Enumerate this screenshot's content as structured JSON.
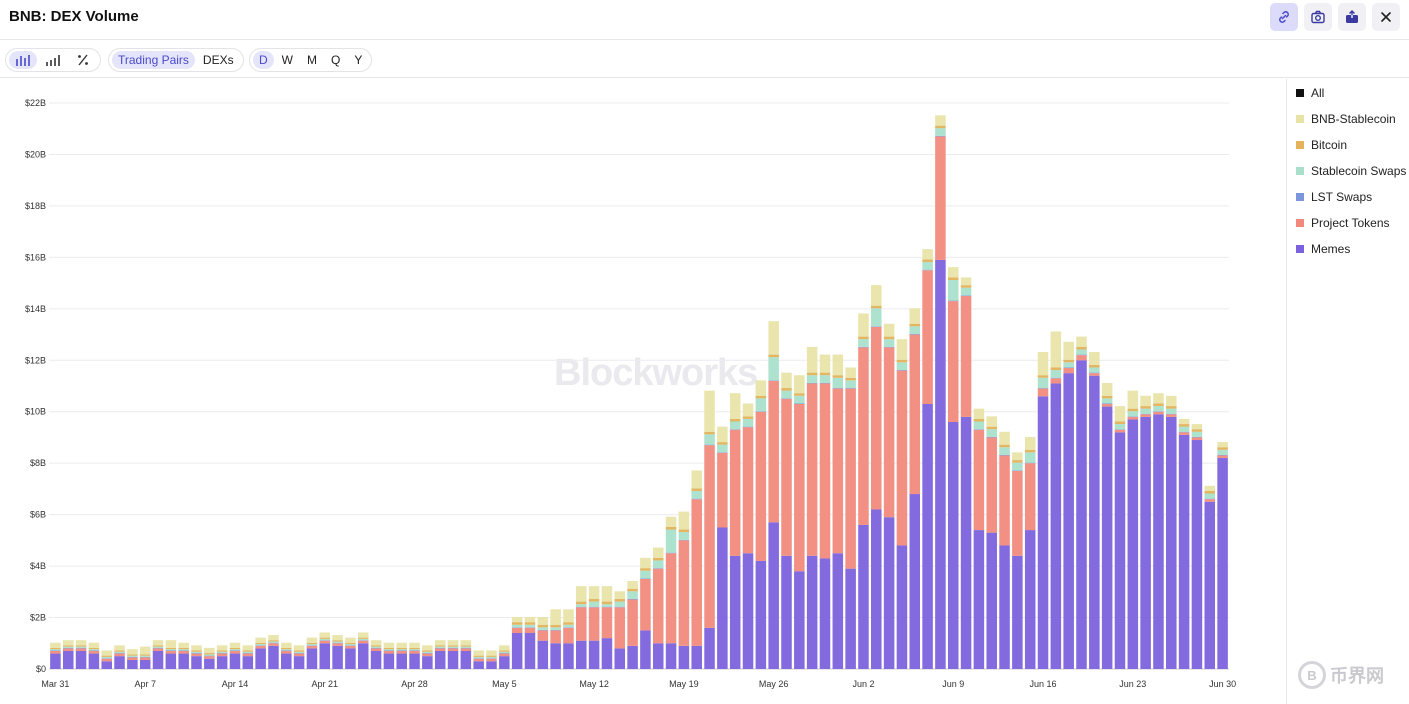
{
  "header": {
    "title": "BNB: DEX Volume"
  },
  "toolbar": {
    "chart_types": [
      "bar-chart-icon",
      "histogram-icon",
      "percent-icon"
    ],
    "view_tabs": [
      "Trading Pairs",
      "DEXs"
    ],
    "interval_tabs": [
      "D",
      "W",
      "M",
      "Q",
      "Y"
    ]
  },
  "watermark": "Blockworks",
  "corner_logo": {
    "text": "币界网",
    "coin": "B"
  },
  "legend": [
    {
      "label": "All",
      "color": "#111111"
    },
    {
      "label": "BNB-Stablecoin",
      "color": "#e8e4a8"
    },
    {
      "label": "Bitcoin",
      "color": "#e3b25a"
    },
    {
      "label": "Stablecoin Swaps",
      "color": "#a8e0cb"
    },
    {
      "label": "LST Swaps",
      "color": "#7b96dc"
    },
    {
      "label": "Project Tokens",
      "color": "#f18a7c"
    },
    {
      "label": "Memes",
      "color": "#7c62dd"
    }
  ],
  "chart_data": {
    "type": "bar",
    "stacked": true,
    "ylim": [
      0,
      22
    ],
    "y_ticks": [
      "$0",
      "$2B",
      "$4B",
      "$6B",
      "$8B",
      "$10B",
      "$12B",
      "$14B",
      "$16B",
      "$18B",
      "$20B",
      "$22B"
    ],
    "x_tick_labels": [
      {
        "index": 0,
        "label": "Mar 31"
      },
      {
        "index": 7,
        "label": "Apr 7"
      },
      {
        "index": 14,
        "label": "Apr 14"
      },
      {
        "index": 21,
        "label": "Apr 21"
      },
      {
        "index": 28,
        "label": "Apr 28"
      },
      {
        "index": 35,
        "label": "May 5"
      },
      {
        "index": 42,
        "label": "May 12"
      },
      {
        "index": 49,
        "label": "May 19"
      },
      {
        "index": 56,
        "label": "May 26"
      },
      {
        "index": 63,
        "label": "Jun 2"
      },
      {
        "index": 70,
        "label": "Jun 9"
      },
      {
        "index": 77,
        "label": "Jun 16"
      },
      {
        "index": 84,
        "label": "Jun 23"
      },
      {
        "index": 91,
        "label": "Jun 30"
      }
    ],
    "unit": "USD billions",
    "series": [
      {
        "name": "Memes",
        "color": "#7c62dd",
        "values": [
          0.6,
          0.7,
          0.7,
          0.6,
          0.3,
          0.5,
          0.35,
          0.35,
          0.7,
          0.6,
          0.6,
          0.5,
          0.4,
          0.5,
          0.6,
          0.5,
          0.8,
          0.9,
          0.6,
          0.5,
          0.8,
          1.0,
          0.9,
          0.8,
          1.0,
          0.7,
          0.6,
          0.6,
          0.6,
          0.5,
          0.7,
          0.7,
          0.7,
          0.3,
          0.3,
          0.5,
          1.4,
          1.4,
          1.1,
          1.0,
          1.0,
          1.1,
          1.1,
          1.2,
          0.8,
          0.9,
          1.5,
          1.0,
          1.0,
          0.9,
          0.9,
          1.6,
          5.5,
          4.4,
          4.5,
          4.2,
          5.7,
          4.4,
          3.8,
          4.4,
          4.3,
          4.5,
          3.9,
          5.6,
          6.2,
          5.9,
          4.8,
          6.8,
          10.3,
          15.9,
          9.6,
          9.8,
          5.4,
          5.3,
          4.8,
          4.4,
          5.4,
          10.6,
          11.1,
          11.5,
          12.0,
          11.4,
          10.2,
          9.2,
          9.7,
          9.8,
          9.9,
          9.8,
          9.1,
          8.9,
          6.5,
          8.2
        ]
      },
      {
        "name": "Project Tokens",
        "color": "#f18a7c",
        "values": [
          0.1,
          0.1,
          0.1,
          0.1,
          0.1,
          0.1,
          0.1,
          0.1,
          0.1,
          0.1,
          0.1,
          0.1,
          0.1,
          0.1,
          0.1,
          0.1,
          0.1,
          0.1,
          0.1,
          0.1,
          0.1,
          0.1,
          0.1,
          0.1,
          0.1,
          0.1,
          0.1,
          0.1,
          0.1,
          0.1,
          0.1,
          0.1,
          0.1,
          0.1,
          0.1,
          0.1,
          0.2,
          0.2,
          0.4,
          0.5,
          0.6,
          1.3,
          1.3,
          1.2,
          1.6,
          1.8,
          2.0,
          2.9,
          3.5,
          4.1,
          5.7,
          7.1,
          2.9,
          4.9,
          4.9,
          5.8,
          5.5,
          6.1,
          6.5,
          6.7,
          6.8,
          6.4,
          7.0,
          6.9,
          7.1,
          6.6,
          6.8,
          6.2,
          5.2,
          4.8,
          4.7,
          4.7,
          3.9,
          3.7,
          3.5,
          3.3,
          2.6,
          0.3,
          0.2,
          0.2,
          0.2,
          0.1,
          0.1,
          0.1,
          0.1,
          0.1,
          0.1,
          0.1,
          0.1,
          0.1,
          0.1,
          0.1
        ]
      },
      {
        "name": "LST Swaps",
        "color": "#7b96dc",
        "values": [
          0.02,
          0.02,
          0.02,
          0.02,
          0.02,
          0.02,
          0.02,
          0.02,
          0.02,
          0.02,
          0.02,
          0.02,
          0.02,
          0.02,
          0.02,
          0.02,
          0.02,
          0.02,
          0.02,
          0.02,
          0.02,
          0.02,
          0.02,
          0.02,
          0.02,
          0.02,
          0.02,
          0.02,
          0.02,
          0.02,
          0.02,
          0.02,
          0.02,
          0.02,
          0.02,
          0.02,
          0.02,
          0.02,
          0.02,
          0.02,
          0.02,
          0.02,
          0.02,
          0.02,
          0.02,
          0.02,
          0.02,
          0.02,
          0.02,
          0.02,
          0.02,
          0.02,
          0.02,
          0.02,
          0.02,
          0.02,
          0.02,
          0.02,
          0.02,
          0.02,
          0.02,
          0.02,
          0.02,
          0.02,
          0.02,
          0.02,
          0.02,
          0.02,
          0.02,
          0.02,
          0.02,
          0.02,
          0.02,
          0.02,
          0.02,
          0.02,
          0.02,
          0.02,
          0.02,
          0.02,
          0.02,
          0.02,
          0.02,
          0.02,
          0.02,
          0.02,
          0.02,
          0.02,
          0.02,
          0.02,
          0.02,
          0.02
        ]
      },
      {
        "name": "Stablecoin Swaps",
        "color": "#a8e0cb",
        "values": [
          0.05,
          0.05,
          0.05,
          0.05,
          0.05,
          0.05,
          0.05,
          0.05,
          0.05,
          0.05,
          0.05,
          0.05,
          0.05,
          0.05,
          0.05,
          0.05,
          0.05,
          0.05,
          0.05,
          0.05,
          0.05,
          0.05,
          0.05,
          0.05,
          0.05,
          0.05,
          0.05,
          0.05,
          0.05,
          0.05,
          0.05,
          0.05,
          0.05,
          0.05,
          0.05,
          0.05,
          0.1,
          0.1,
          0.1,
          0.1,
          0.1,
          0.1,
          0.2,
          0.1,
          0.2,
          0.3,
          0.3,
          0.3,
          0.9,
          0.3,
          0.3,
          0.4,
          0.3,
          0.3,
          0.3,
          0.5,
          0.9,
          0.3,
          0.3,
          0.3,
          0.3,
          0.4,
          0.3,
          0.3,
          0.7,
          0.3,
          0.3,
          0.3,
          0.3,
          0.3,
          0.8,
          0.3,
          0.3,
          0.3,
          0.3,
          0.3,
          0.4,
          0.4,
          0.3,
          0.2,
          0.2,
          0.2,
          0.2,
          0.2,
          0.2,
          0.2,
          0.2,
          0.2,
          0.2,
          0.2,
          0.2,
          0.2
        ]
      },
      {
        "name": "Bitcoin",
        "color": "#e3b25a",
        "values": [
          0.05,
          0.05,
          0.05,
          0.05,
          0.05,
          0.05,
          0.05,
          0.05,
          0.05,
          0.05,
          0.05,
          0.05,
          0.05,
          0.05,
          0.05,
          0.05,
          0.05,
          0.05,
          0.05,
          0.05,
          0.05,
          0.05,
          0.05,
          0.05,
          0.05,
          0.05,
          0.05,
          0.05,
          0.05,
          0.05,
          0.05,
          0.05,
          0.05,
          0.05,
          0.05,
          0.05,
          0.1,
          0.1,
          0.1,
          0.1,
          0.1,
          0.1,
          0.1,
          0.1,
          0.1,
          0.1,
          0.1,
          0.1,
          0.1,
          0.1,
          0.1,
          0.1,
          0.1,
          0.1,
          0.1,
          0.1,
          0.1,
          0.1,
          0.1,
          0.1,
          0.1,
          0.1,
          0.1,
          0.1,
          0.1,
          0.1,
          0.1,
          0.1,
          0.1,
          0.1,
          0.1,
          0.1,
          0.1,
          0.1,
          0.1,
          0.1,
          0.1,
          0.1,
          0.1,
          0.1,
          0.1,
          0.1,
          0.1,
          0.1,
          0.1,
          0.1,
          0.1,
          0.1,
          0.1,
          0.1,
          0.1,
          0.1
        ]
      },
      {
        "name": "BNB-Stablecoin",
        "color": "#e8e4a8",
        "values": [
          0.2,
          0.2,
          0.2,
          0.2,
          0.2,
          0.2,
          0.2,
          0.3,
          0.2,
          0.3,
          0.2,
          0.2,
          0.2,
          0.2,
          0.2,
          0.2,
          0.2,
          0.2,
          0.2,
          0.2,
          0.2,
          0.2,
          0.2,
          0.2,
          0.2,
          0.2,
          0.2,
          0.2,
          0.2,
          0.2,
          0.2,
          0.2,
          0.2,
          0.2,
          0.2,
          0.2,
          0.2,
          0.2,
          0.3,
          0.6,
          0.5,
          0.6,
          0.5,
          0.6,
          0.3,
          0.3,
          0.4,
          0.4,
          0.4,
          0.7,
          0.7,
          1.6,
          0.6,
          1.0,
          0.5,
          0.6,
          1.3,
          0.6,
          0.7,
          1.0,
          0.7,
          0.8,
          0.4,
          0.9,
          0.8,
          0.5,
          0.8,
          0.6,
          0.4,
          0.4,
          0.4,
          0.3,
          0.4,
          0.4,
          0.5,
          0.3,
          0.5,
          0.9,
          1.4,
          0.7,
          0.4,
          0.5,
          0.5,
          0.6,
          0.7,
          0.4,
          0.4,
          0.4,
          0.2,
          0.2,
          0.2,
          0.2
        ]
      }
    ]
  }
}
